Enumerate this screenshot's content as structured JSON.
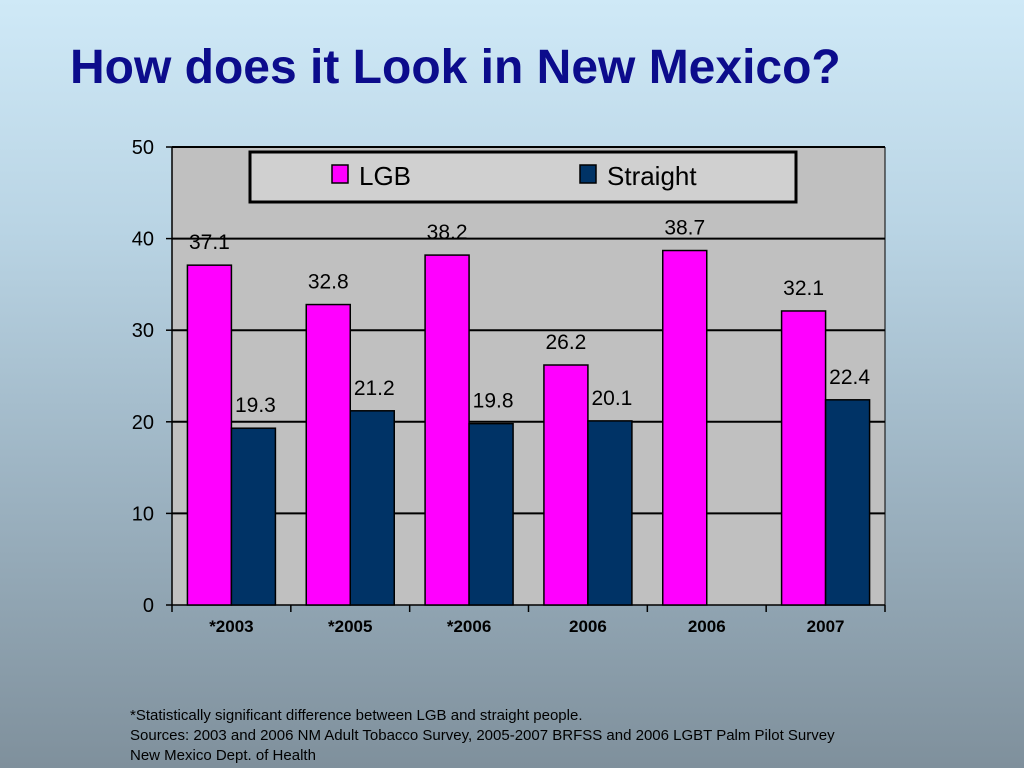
{
  "slide": {
    "title": "How does it Look in New Mexico?"
  },
  "colors": {
    "lgb": "#ff00ff",
    "straight": "#003366",
    "plot_bg": "#c0c0c0",
    "title": "#0c0c8c"
  },
  "chart_data": {
    "type": "bar",
    "categories": [
      "*2003",
      "*2005",
      "*2006",
      "2006",
      "2006",
      "2007"
    ],
    "series": [
      {
        "name": "LGB",
        "values": [
          37.1,
          32.8,
          38.2,
          26.2,
          38.7,
          32.1
        ]
      },
      {
        "name": "Straight",
        "values": [
          19.3,
          21.2,
          19.8,
          20.1,
          null,
          22.4
        ]
      }
    ],
    "value_labels": [
      [
        "37.1",
        "32.8",
        "38.2",
        "26.2",
        "38.7",
        "32.1"
      ],
      [
        "19.3",
        "21.2",
        "19.8",
        "20.1",
        null,
        "22.4"
      ]
    ],
    "yticks": [
      "0",
      "10",
      "20",
      "30",
      "40",
      "50"
    ],
    "ylim": [
      0,
      50
    ],
    "grid": true,
    "legend_position": "top"
  },
  "footnotes": [
    "*Statistically significant difference between LGB and straight people.",
    "Sources: 2003 and 2006 NM Adult Tobacco Survey, 2005-2007 BRFSS and 2006 LGBT Palm Pilot Survey",
    "New Mexico Dept. of Health"
  ]
}
